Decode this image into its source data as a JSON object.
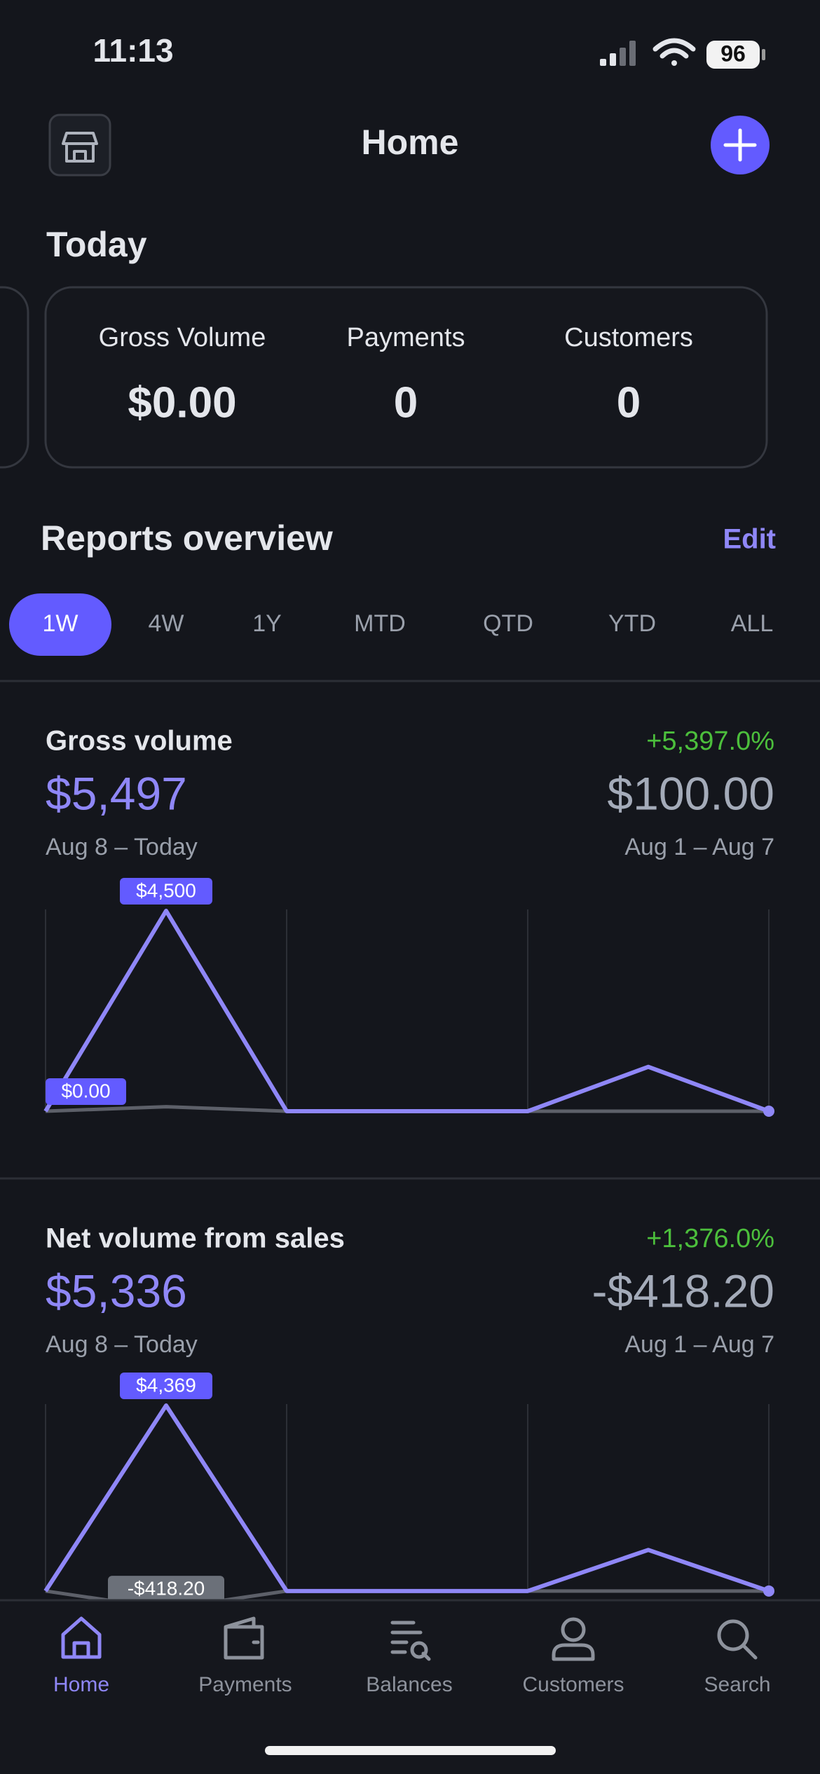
{
  "status_bar": {
    "time": "11:13",
    "battery": "96"
  },
  "header": {
    "title": "Home"
  },
  "today": {
    "title": "Today",
    "metrics": [
      {
        "label": "Gross Volume",
        "value": "$0.00"
      },
      {
        "label": "Payments",
        "value": "0"
      },
      {
        "label": "Customers",
        "value": "0"
      }
    ]
  },
  "reports": {
    "title": "Reports overview",
    "edit": "Edit",
    "ranges": [
      "1W",
      "4W",
      "1Y",
      "MTD",
      "QTD",
      "YTD",
      "ALL"
    ],
    "selected": "1W"
  },
  "chart_data": [
    {
      "type": "line",
      "title": "Gross volume",
      "value": "$5,497",
      "date_range": "Aug 8 – Today",
      "change": "+5,397.0%",
      "compare_value": "$100.00",
      "compare_date_range": "Aug 1 – Aug 7",
      "categories": [
        null,
        null,
        null,
        null,
        null,
        null,
        null
      ],
      "ylim": [
        0,
        4500
      ],
      "series": [
        {
          "color": "#5d6069",
          "values": [
            0,
            100,
            0,
            0,
            0,
            0,
            0
          ]
        },
        {
          "color": "#8f87f7",
          "values": [
            0,
            4500,
            0,
            0,
            0,
            997,
            0
          ],
          "value_labels": [
            "$0.00",
            "$4,500",
            null,
            null,
            null,
            null,
            null
          ]
        }
      ]
    },
    {
      "type": "line",
      "title": "Net volume from sales",
      "value": "$5,336",
      "date_range": "Aug 8 – Today",
      "change": "+1,376.0%",
      "compare_value": "-$418.20",
      "compare_date_range": "Aug 1 – Aug 7",
      "categories": [
        null,
        null,
        null,
        null,
        null,
        null,
        null
      ],
      "ylim": [
        -300,
        4369
      ],
      "series": [
        {
          "color": "#5d6069",
          "values": [
            0,
            -418.2,
            0,
            0,
            0,
            0,
            0
          ],
          "value_labels": [
            null,
            "-$418.20",
            null,
            null,
            null,
            null,
            null
          ]
        },
        {
          "color": "#8f87f7",
          "values": [
            0,
            4369,
            0,
            0,
            0,
            967,
            0
          ],
          "value_labels": [
            null,
            "$4,369",
            null,
            null,
            null,
            null,
            null
          ]
        }
      ]
    }
  ],
  "tab_bar": {
    "items": [
      "Home",
      "Payments",
      "Balances",
      "Customers",
      "Search"
    ],
    "selected": "Home"
  }
}
